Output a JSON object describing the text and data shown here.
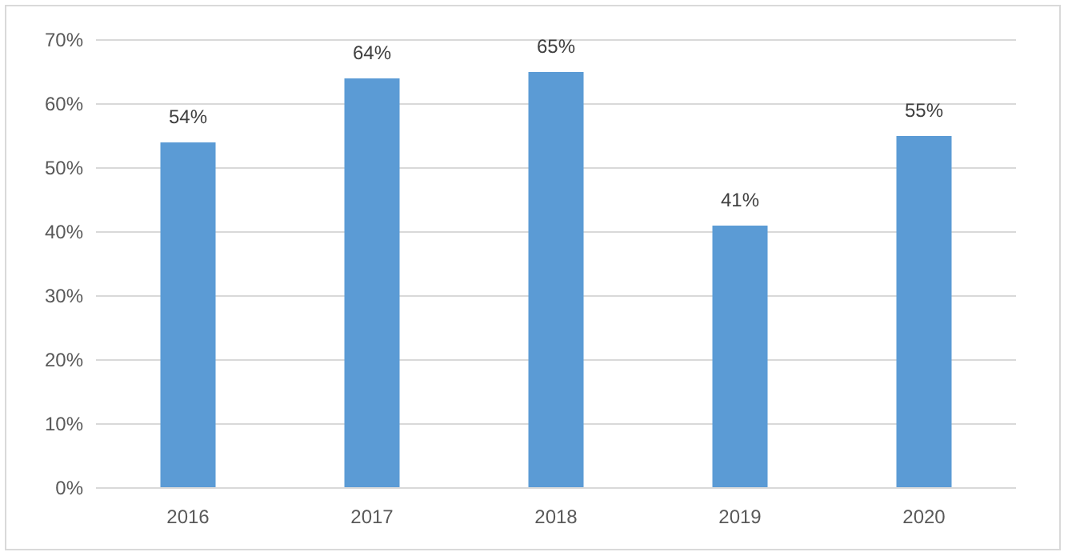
{
  "chart_data": {
    "type": "bar",
    "categories": [
      "2016",
      "2017",
      "2018",
      "2019",
      "2020"
    ],
    "values": [
      54,
      64,
      65,
      41,
      55
    ],
    "value_labels": [
      "54%",
      "64%",
      "65%",
      "41%",
      "55%"
    ],
    "color": "#5b9bd5",
    "ylim": [
      0,
      70
    ],
    "yticks": [
      {
        "value": 0,
        "label": "0%"
      },
      {
        "value": 10,
        "label": "10%"
      },
      {
        "value": 20,
        "label": "20%"
      },
      {
        "value": 30,
        "label": "30%"
      },
      {
        "value": 40,
        "label": "40%"
      },
      {
        "value": 50,
        "label": "50%"
      },
      {
        "value": 60,
        "label": "60%"
      },
      {
        "value": 70,
        "label": "70%"
      }
    ],
    "grid": "y"
  }
}
